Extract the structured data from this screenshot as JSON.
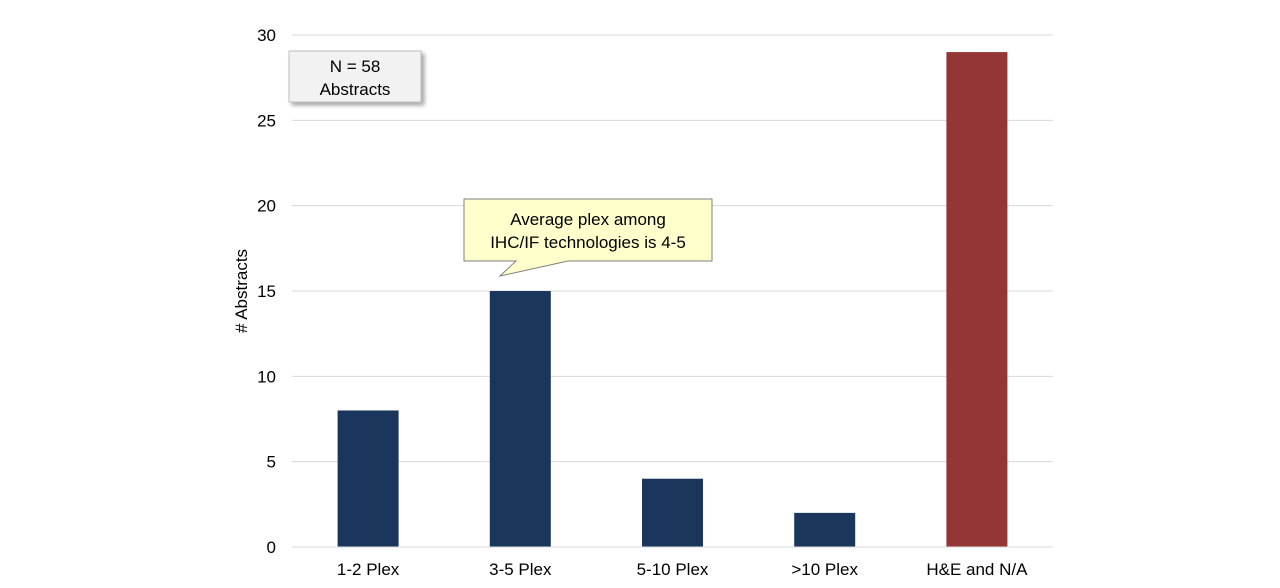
{
  "chart_data": {
    "type": "bar",
    "title": "",
    "xlabel": "",
    "ylabel": "# Abstracts",
    "ylim": [
      0,
      30
    ],
    "yticks": [
      0,
      5,
      10,
      15,
      20,
      25,
      30
    ],
    "grid": "horizontal",
    "categories": [
      "1-2 Plex",
      "3-5 Plex",
      "5-10 Plex",
      ">10 Plex",
      "H&E and N/A"
    ],
    "values": [
      8,
      15,
      4,
      2,
      29
    ],
    "bar_colors": [
      "#1b365d",
      "#1b365d",
      "#1b365d",
      "#1b365d",
      "#943634"
    ],
    "annotations": [
      {
        "id": "n-box",
        "lines": [
          "N = 58",
          "Abstracts"
        ],
        "style": "shadow-box",
        "fill": "#f2f2f2"
      },
      {
        "id": "callout",
        "lines": [
          "Average plex among",
          "IHC/IF technologies is 4-5"
        ],
        "style": "speech-bubble",
        "fill": "#ffffcc",
        "points_to_category": "3-5 Plex"
      }
    ]
  }
}
